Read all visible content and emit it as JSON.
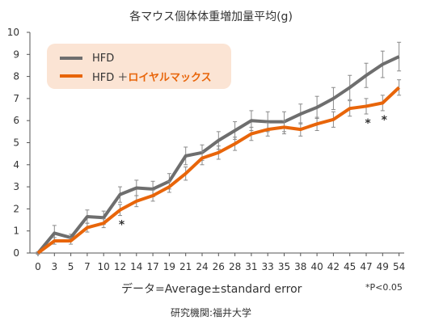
{
  "chart_data": {
    "type": "line",
    "title": "各マウス個体体重増加量平均(g)",
    "x": [
      0,
      3,
      5,
      7,
      10,
      12,
      14,
      17,
      19,
      21,
      24,
      26,
      28,
      31,
      33,
      35,
      38,
      40,
      42,
      45,
      47,
      49,
      54
    ],
    "ylim": [
      0,
      10
    ],
    "yticks": [
      0,
      1,
      2,
      3,
      4,
      5,
      6,
      7,
      8,
      9,
      10
    ],
    "grid": false,
    "legend_position": "top-left",
    "series": [
      {
        "name": "HFD",
        "color": "#6e6e6e",
        "values": [
          0,
          0.9,
          0.7,
          1.65,
          1.6,
          2.65,
          2.95,
          2.9,
          3.25,
          4.4,
          4.55,
          5.1,
          5.55,
          6.0,
          5.95,
          5.95,
          6.3,
          6.6,
          7.0,
          7.5,
          8.05,
          8.55,
          8.9
        ],
        "errors": [
          0.05,
          0.35,
          0.15,
          0.3,
          0.3,
          0.35,
          0.35,
          0.35,
          0.35,
          0.4,
          0.35,
          0.4,
          0.4,
          0.45,
          0.45,
          0.45,
          0.45,
          0.5,
          0.5,
          0.55,
          0.55,
          0.6,
          0.65
        ]
      },
      {
        "name_prefix": "HFD ＋ ",
        "name_accent": "ロイヤルマックス",
        "color": "#e8650a",
        "values": [
          0,
          0.55,
          0.55,
          1.15,
          1.35,
          1.95,
          2.35,
          2.6,
          3.0,
          3.6,
          4.3,
          4.55,
          4.95,
          5.4,
          5.6,
          5.7,
          5.6,
          5.85,
          6.05,
          6.55,
          6.65,
          6.8,
          7.5
        ],
        "errors": [
          0.05,
          0.15,
          0.15,
          0.2,
          0.2,
          0.25,
          0.25,
          0.25,
          0.25,
          0.3,
          0.3,
          0.3,
          0.3,
          0.3,
          0.3,
          0.3,
          0.3,
          0.3,
          0.35,
          0.35,
          0.35,
          0.35,
          0.35
        ]
      }
    ],
    "significance_marks": [
      {
        "x": 12,
        "label": "*"
      },
      {
        "x": 47,
        "label": "*"
      },
      {
        "x": 49,
        "label": "*"
      }
    ]
  },
  "footnote": "データ=Average±standard error",
  "pvalue_note": "*P<0.05",
  "source": "研究機関:福井大学",
  "legend_hfd_label": "HFD"
}
